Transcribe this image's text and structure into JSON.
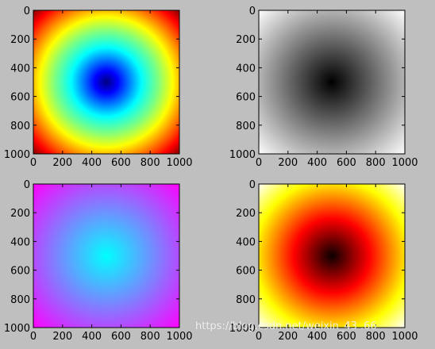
{
  "chart_data": [
    {
      "type": "heatmap",
      "colormap": "jet",
      "description_value": "distance from center",
      "xlim": [
        0,
        1000
      ],
      "ylim": [
        1000,
        0
      ],
      "xticks": [
        "0",
        "200",
        "400",
        "600",
        "800",
        "1000"
      ],
      "yticks": [
        "0",
        "200",
        "400",
        "600",
        "800",
        "1000"
      ],
      "center": [
        500,
        500
      ]
    },
    {
      "type": "heatmap",
      "colormap": "gray",
      "xlim": [
        0,
        1000
      ],
      "ylim": [
        1000,
        0
      ],
      "xticks": [
        "0",
        "200",
        "400",
        "600",
        "800",
        "1000"
      ],
      "yticks": [
        "0",
        "200",
        "400",
        "600",
        "800",
        "1000"
      ],
      "center": [
        500,
        500
      ]
    },
    {
      "type": "heatmap",
      "colormap": "cool",
      "xlim": [
        0,
        1000
      ],
      "ylim": [
        1000,
        0
      ],
      "xticks": [
        "0",
        "200",
        "400",
        "600",
        "800",
        "1000"
      ],
      "yticks": [
        "0",
        "200",
        "400",
        "600",
        "800",
        "1000"
      ],
      "center": [
        500,
        500
      ]
    },
    {
      "type": "heatmap",
      "colormap": "hot",
      "xlim": [
        0,
        1000
      ],
      "ylim": [
        1000,
        0
      ],
      "xticks": [
        "0",
        "200",
        "400",
        "600",
        "800",
        "1000"
      ],
      "yticks": [
        "0",
        "200",
        "400",
        "600",
        "800",
        "1000"
      ],
      "center": [
        500,
        500
      ]
    }
  ],
  "watermark": "https://blog.csdn.net/weixin_43 .66"
}
